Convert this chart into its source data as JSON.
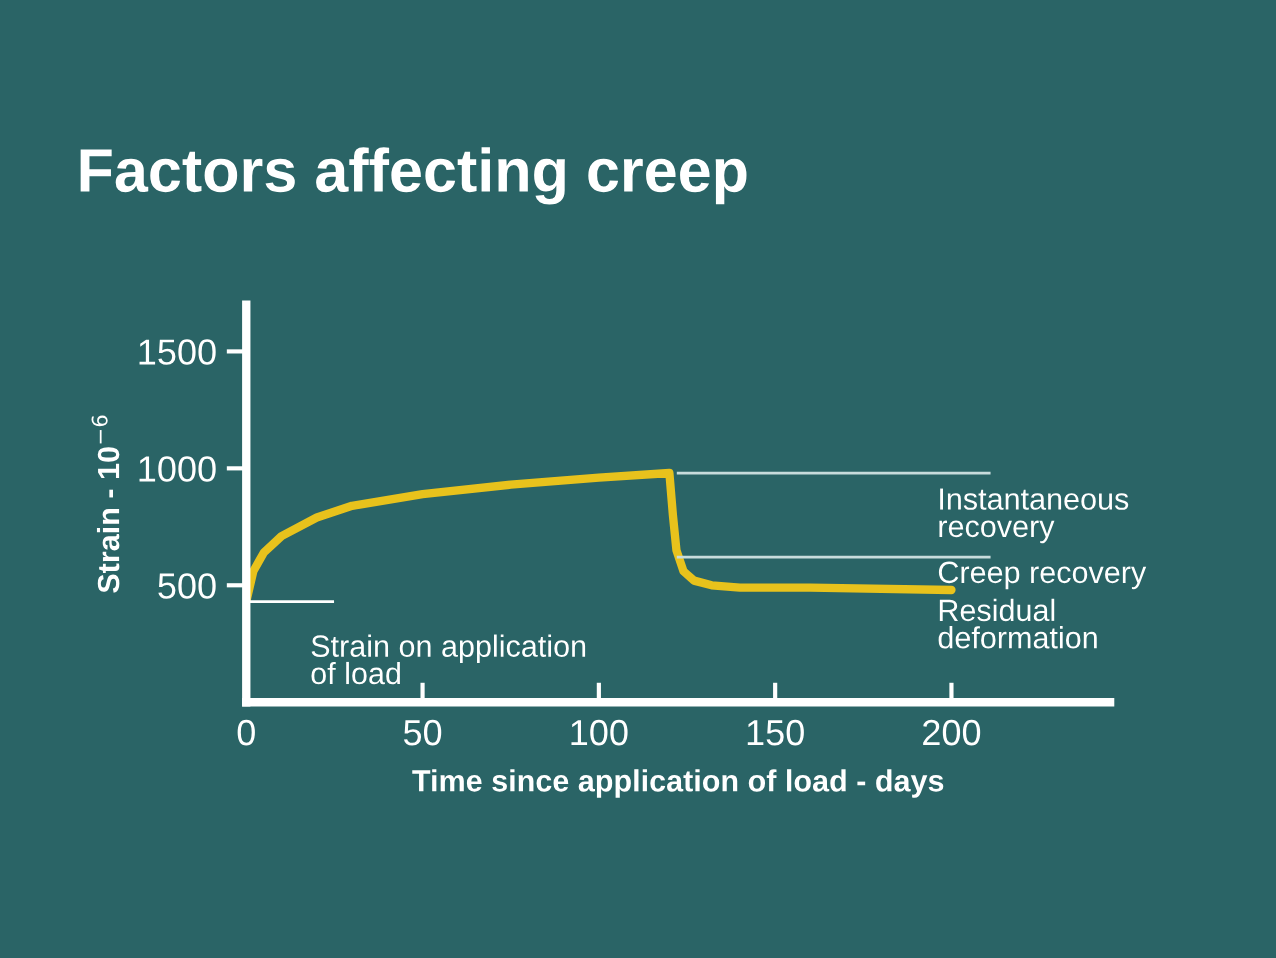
{
  "chart_data": {
    "type": "line",
    "title": "Factors affecting creep",
    "xlabel": "Time since application of load - days",
    "ylabel": "Strain - 10$^{−6}$",
    "x": [
      0,
      2,
      5,
      10,
      20,
      30,
      50,
      75,
      100,
      120,
      121,
      122,
      124,
      127,
      132,
      140,
      160,
      200
    ],
    "series": [
      {
        "color": "#e8c21c",
        "values": [
          430,
          560,
          640,
          710,
          790,
          840,
          890,
          930,
          960,
          980,
          800,
          650,
          560,
          520,
          500,
          490,
          490,
          480
        ]
      }
    ],
    "xlim": [
      0,
      245
    ],
    "ylim": [
      0,
      1700
    ],
    "xticks": [
      0,
      50,
      100,
      150,
      200
    ],
    "yticks": [
      500,
      1000,
      1500
    ],
    "ref_lines": [
      {
        "axis": "y",
        "value": 980,
        "color": "#c8dcdc"
      },
      {
        "axis": "y",
        "value": 620,
        "color": "#c8dcdc"
      },
      {
        "axis": "y",
        "value": 430,
        "color": "#ffffff"
      }
    ],
    "annotations": [
      "Instantaneous\nrecovery",
      "Creep recovery",
      "Residual\ndeformation",
      "Strain on application\nof load"
    ],
    "grid": false,
    "legend": false,
    "marker": "none",
    "line_style": "solid"
  }
}
